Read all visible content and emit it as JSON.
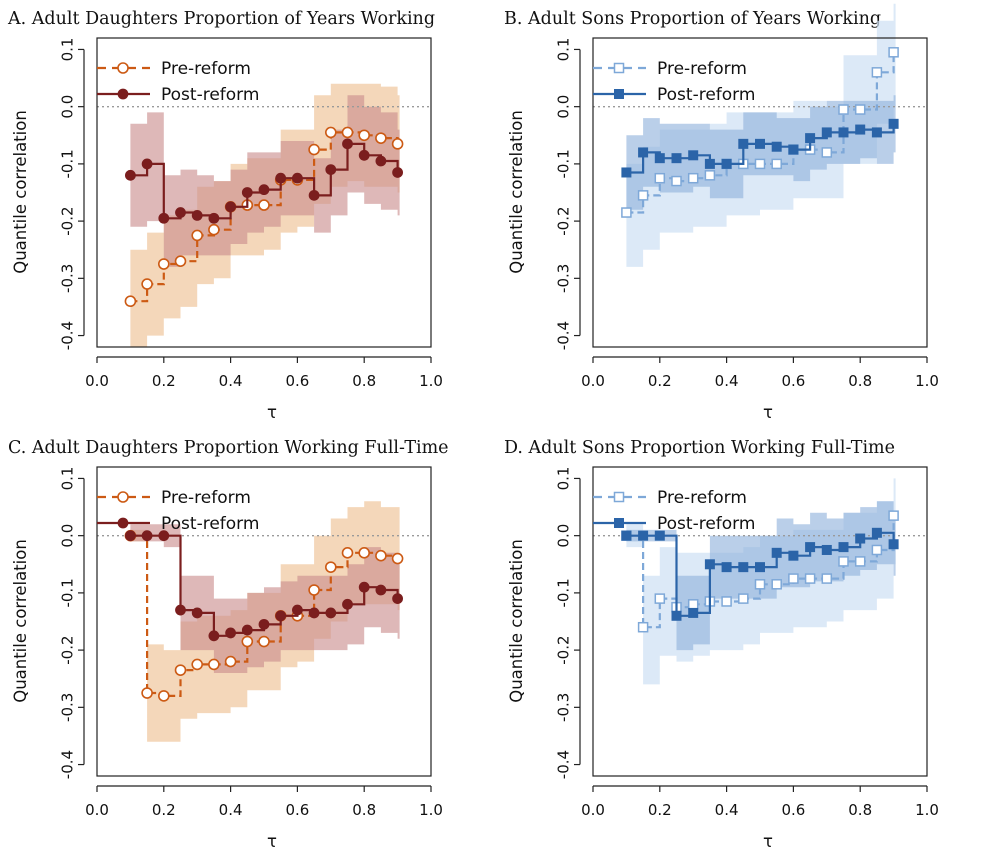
{
  "styles": {
    "daughters": {
      "pre": {
        "color": "#cc5a14",
        "band": "#f0c7a0",
        "marker": "circle-open",
        "dash": true
      },
      "post": {
        "color": "#7b1e1e",
        "band": "#c98c8c",
        "marker": "circle-filled",
        "dash": false
      }
    },
    "sons": {
      "pre": {
        "color": "#7ea8d8",
        "band": "#cfe0f4",
        "marker": "square-open",
        "dash": true
      },
      "post": {
        "color": "#2b64a8",
        "band": "#8fb2dc",
        "marker": "square-filled",
        "dash": false
      }
    },
    "zero_line": "#9a9a9a"
  },
  "chart_data": [
    {
      "type": "line",
      "group": "daughters",
      "title": "A. Adult Daughters Proportion of Years Working",
      "xlabel": "τ",
      "ylabel": "Quantile correlation",
      "xlim": [
        0.0,
        1.0
      ],
      "ylim": [
        -0.42,
        0.12
      ],
      "xticks": [
        "0.0",
        "0.2",
        "0.4",
        "0.6",
        "0.8",
        "1.0"
      ],
      "yticks": [
        "0.1",
        "0.0",
        "-0.1",
        "-0.2",
        "-0.3",
        "-0.4"
      ],
      "legend_position": "top-left",
      "grid": false,
      "series": [
        {
          "name": "Pre-reform",
          "x": [
            0.1,
            0.15,
            0.2,
            0.25,
            0.3,
            0.35,
            0.4,
            0.45,
            0.5,
            0.55,
            0.6,
            0.65,
            0.7,
            0.75,
            0.8,
            0.85,
            0.9
          ],
          "y": [
            -0.34,
            -0.31,
            -0.275,
            -0.27,
            -0.225,
            -0.215,
            -0.175,
            -0.172,
            -0.172,
            -0.128,
            -0.128,
            -0.075,
            -0.045,
            -0.045,
            -0.05,
            -0.055,
            -0.065
          ],
          "lower": [
            -0.42,
            -0.4,
            -0.37,
            -0.35,
            -0.31,
            -0.3,
            -0.26,
            -0.26,
            -0.25,
            -0.22,
            -0.21,
            -0.17,
            -0.14,
            -0.13,
            -0.14,
            -0.14,
            -0.15
          ],
          "upper": [
            -0.25,
            -0.22,
            -0.19,
            -0.18,
            -0.14,
            -0.13,
            -0.1,
            -0.09,
            -0.09,
            -0.04,
            -0.04,
            0.02,
            0.04,
            0.04,
            0.04,
            0.035,
            0.02
          ]
        },
        {
          "name": "Post-reform",
          "x": [
            0.1,
            0.15,
            0.2,
            0.25,
            0.3,
            0.35,
            0.4,
            0.45,
            0.5,
            0.55,
            0.6,
            0.65,
            0.7,
            0.75,
            0.8,
            0.85,
            0.9
          ],
          "y": [
            -0.12,
            -0.1,
            -0.195,
            -0.185,
            -0.19,
            -0.195,
            -0.175,
            -0.15,
            -0.145,
            -0.125,
            -0.125,
            -0.155,
            -0.11,
            -0.065,
            -0.085,
            -0.095,
            -0.115
          ],
          "lower": [
            -0.21,
            -0.2,
            -0.28,
            -0.26,
            -0.26,
            -0.26,
            -0.24,
            -0.22,
            -0.21,
            -0.19,
            -0.19,
            -0.22,
            -0.19,
            -0.15,
            -0.17,
            -0.18,
            -0.19
          ],
          "upper": [
            -0.03,
            -0.01,
            -0.12,
            -0.11,
            -0.12,
            -0.13,
            -0.11,
            -0.08,
            -0.08,
            -0.06,
            -0.06,
            -0.09,
            -0.04,
            0.02,
            0.0,
            -0.01,
            -0.04
          ]
        }
      ]
    },
    {
      "type": "line",
      "group": "sons",
      "title": "B. Adult Sons Proportion of Years Working",
      "xlabel": "τ",
      "ylabel": "Quantile correlation",
      "xlim": [
        0.0,
        1.0
      ],
      "ylim": [
        -0.42,
        0.12
      ],
      "xticks": [
        "0.0",
        "0.2",
        "0.4",
        "0.6",
        "0.8",
        "1.0"
      ],
      "yticks": [
        "0.1",
        "0.0",
        "-0.1",
        "-0.2",
        "-0.3",
        "-0.4"
      ],
      "legend_position": "top-left",
      "grid": false,
      "series": [
        {
          "name": "Pre-reform",
          "x": [
            0.1,
            0.15,
            0.2,
            0.25,
            0.3,
            0.35,
            0.4,
            0.45,
            0.5,
            0.55,
            0.6,
            0.65,
            0.7,
            0.75,
            0.8,
            0.85,
            0.9
          ],
          "y": [
            -0.185,
            -0.155,
            -0.125,
            -0.13,
            -0.125,
            -0.12,
            -0.1,
            -0.1,
            -0.1,
            -0.1,
            -0.075,
            -0.075,
            -0.08,
            -0.005,
            -0.005,
            0.06,
            0.095
          ],
          "lower": [
            -0.28,
            -0.25,
            -0.22,
            -0.22,
            -0.21,
            -0.21,
            -0.19,
            -0.19,
            -0.18,
            -0.18,
            -0.16,
            -0.16,
            -0.16,
            -0.1,
            -0.1,
            -0.03,
            0.0
          ],
          "upper": [
            -0.1,
            -0.07,
            -0.04,
            -0.04,
            -0.04,
            -0.03,
            -0.01,
            -0.01,
            -0.01,
            -0.01,
            0.01,
            0.01,
            0.0,
            0.09,
            0.09,
            0.15,
            0.18
          ]
        },
        {
          "name": "Post-reform",
          "x": [
            0.1,
            0.15,
            0.2,
            0.25,
            0.3,
            0.35,
            0.4,
            0.45,
            0.5,
            0.55,
            0.6,
            0.65,
            0.7,
            0.75,
            0.8,
            0.85,
            0.9
          ],
          "y": [
            -0.115,
            -0.08,
            -0.09,
            -0.09,
            -0.085,
            -0.1,
            -0.1,
            -0.065,
            -0.065,
            -0.07,
            -0.075,
            -0.055,
            -0.045,
            -0.045,
            -0.04,
            -0.045,
            -0.03
          ],
          "lower": [
            -0.18,
            -0.14,
            -0.15,
            -0.15,
            -0.14,
            -0.16,
            -0.16,
            -0.12,
            -0.12,
            -0.12,
            -0.13,
            -0.11,
            -0.1,
            -0.1,
            -0.09,
            -0.1,
            -0.08
          ],
          "upper": [
            -0.05,
            -0.02,
            -0.03,
            -0.03,
            -0.03,
            -0.04,
            -0.04,
            -0.01,
            -0.01,
            -0.02,
            -0.02,
            0.0,
            0.01,
            0.01,
            0.01,
            0.01,
            0.02
          ]
        }
      ]
    },
    {
      "type": "line",
      "group": "daughters",
      "title": "C. Adult Daughters Proportion Working Full-Time",
      "xlabel": "τ",
      "ylabel": "Quantile correlation",
      "xlim": [
        0.0,
        1.0
      ],
      "ylim": [
        -0.42,
        0.12
      ],
      "xticks": [
        "0.0",
        "0.2",
        "0.4",
        "0.6",
        "0.8",
        "1.0"
      ],
      "yticks": [
        "0.1",
        "0.0",
        "-0.1",
        "-0.2",
        "-0.3",
        "-0.4"
      ],
      "legend_position": "top-left",
      "grid": false,
      "series": [
        {
          "name": "Pre-reform",
          "x": [
            0.1,
            0.15,
            0.2,
            0.25,
            0.3,
            0.35,
            0.4,
            0.45,
            0.5,
            0.55,
            0.6,
            0.65,
            0.7,
            0.75,
            0.8,
            0.85,
            0.9
          ],
          "y": [
            0.0,
            -0.275,
            -0.28,
            -0.235,
            -0.225,
            -0.225,
            -0.22,
            -0.185,
            -0.185,
            -0.14,
            -0.14,
            -0.095,
            -0.055,
            -0.03,
            -0.03,
            -0.035,
            -0.04
          ],
          "lower": [
            -0.01,
            -0.36,
            -0.36,
            -0.32,
            -0.31,
            -0.31,
            -0.3,
            -0.27,
            -0.27,
            -0.23,
            -0.22,
            -0.18,
            -0.15,
            -0.12,
            -0.12,
            -0.12,
            -0.13
          ],
          "upper": [
            0.01,
            -0.19,
            -0.2,
            -0.15,
            -0.14,
            -0.14,
            -0.13,
            -0.1,
            -0.1,
            -0.05,
            -0.05,
            0.0,
            0.03,
            0.05,
            0.06,
            0.05,
            0.05
          ]
        },
        {
          "name": "Post-reform",
          "x": [
            0.1,
            0.15,
            0.2,
            0.25,
            0.3,
            0.35,
            0.4,
            0.45,
            0.5,
            0.55,
            0.6,
            0.65,
            0.7,
            0.75,
            0.8,
            0.85,
            0.9
          ],
          "y": [
            0.0,
            0.0,
            0.0,
            -0.13,
            -0.135,
            -0.175,
            -0.17,
            -0.165,
            -0.155,
            -0.14,
            -0.13,
            -0.135,
            -0.135,
            -0.12,
            -0.09,
            -0.095,
            -0.11
          ],
          "lower": [
            -0.01,
            -0.01,
            -0.02,
            -0.2,
            -0.2,
            -0.24,
            -0.24,
            -0.23,
            -0.22,
            -0.2,
            -0.2,
            -0.2,
            -0.2,
            -0.19,
            -0.16,
            -0.17,
            -0.18
          ],
          "upper": [
            0.02,
            0.02,
            0.02,
            -0.07,
            -0.07,
            -0.11,
            -0.11,
            -0.1,
            -0.09,
            -0.08,
            -0.07,
            -0.07,
            -0.07,
            -0.05,
            -0.02,
            -0.03,
            -0.04
          ]
        }
      ]
    },
    {
      "type": "line",
      "group": "sons",
      "title": "D. Adult Sons Proportion Working Full-Time",
      "xlabel": "τ",
      "ylabel": "Quantile correlation",
      "xlim": [
        0.0,
        1.0
      ],
      "ylim": [
        -0.42,
        0.12
      ],
      "xticks": [
        "0.0",
        "0.2",
        "0.4",
        "0.6",
        "0.8",
        "1.0"
      ],
      "yticks": [
        "0.1",
        "0.0",
        "-0.1",
        "-0.2",
        "-0.3",
        "-0.4"
      ],
      "legend_position": "top-left",
      "grid": false,
      "series": [
        {
          "name": "Pre-reform",
          "x": [
            0.1,
            0.15,
            0.2,
            0.25,
            0.3,
            0.35,
            0.4,
            0.45,
            0.5,
            0.55,
            0.6,
            0.65,
            0.7,
            0.75,
            0.8,
            0.85,
            0.9
          ],
          "y": [
            0.0,
            -0.16,
            -0.11,
            -0.125,
            -0.12,
            -0.115,
            -0.115,
            -0.11,
            -0.085,
            -0.085,
            -0.075,
            -0.075,
            -0.075,
            -0.045,
            -0.045,
            -0.025,
            0.035
          ],
          "lower": [
            -0.02,
            -0.26,
            -0.21,
            -0.22,
            -0.21,
            -0.2,
            -0.2,
            -0.19,
            -0.17,
            -0.17,
            -0.16,
            -0.16,
            -0.15,
            -0.13,
            -0.13,
            -0.11,
            -0.05
          ],
          "upper": [
            0.02,
            -0.07,
            -0.02,
            -0.03,
            -0.03,
            -0.03,
            -0.03,
            -0.02,
            0.0,
            0.0,
            0.01,
            0.01,
            0.01,
            0.04,
            0.04,
            0.06,
            0.1
          ]
        },
        {
          "name": "Post-reform",
          "x": [
            0.1,
            0.15,
            0.2,
            0.25,
            0.3,
            0.35,
            0.4,
            0.45,
            0.5,
            0.55,
            0.6,
            0.65,
            0.7,
            0.75,
            0.8,
            0.85,
            0.9
          ],
          "y": [
            0.0,
            0.0,
            0.0,
            -0.14,
            -0.135,
            -0.05,
            -0.055,
            -0.055,
            -0.055,
            -0.03,
            -0.035,
            -0.02,
            -0.025,
            -0.02,
            -0.005,
            0.005,
            -0.015
          ],
          "lower": [
            -0.01,
            -0.01,
            -0.01,
            -0.2,
            -0.19,
            -0.11,
            -0.11,
            -0.11,
            -0.11,
            -0.09,
            -0.09,
            -0.08,
            -0.08,
            -0.07,
            -0.06,
            -0.05,
            -0.07
          ],
          "upper": [
            0.01,
            0.01,
            0.01,
            -0.07,
            -0.07,
            0.0,
            0.0,
            0.0,
            0.0,
            0.03,
            0.02,
            0.04,
            0.03,
            0.04,
            0.05,
            0.06,
            0.04
          ]
        }
      ]
    }
  ]
}
